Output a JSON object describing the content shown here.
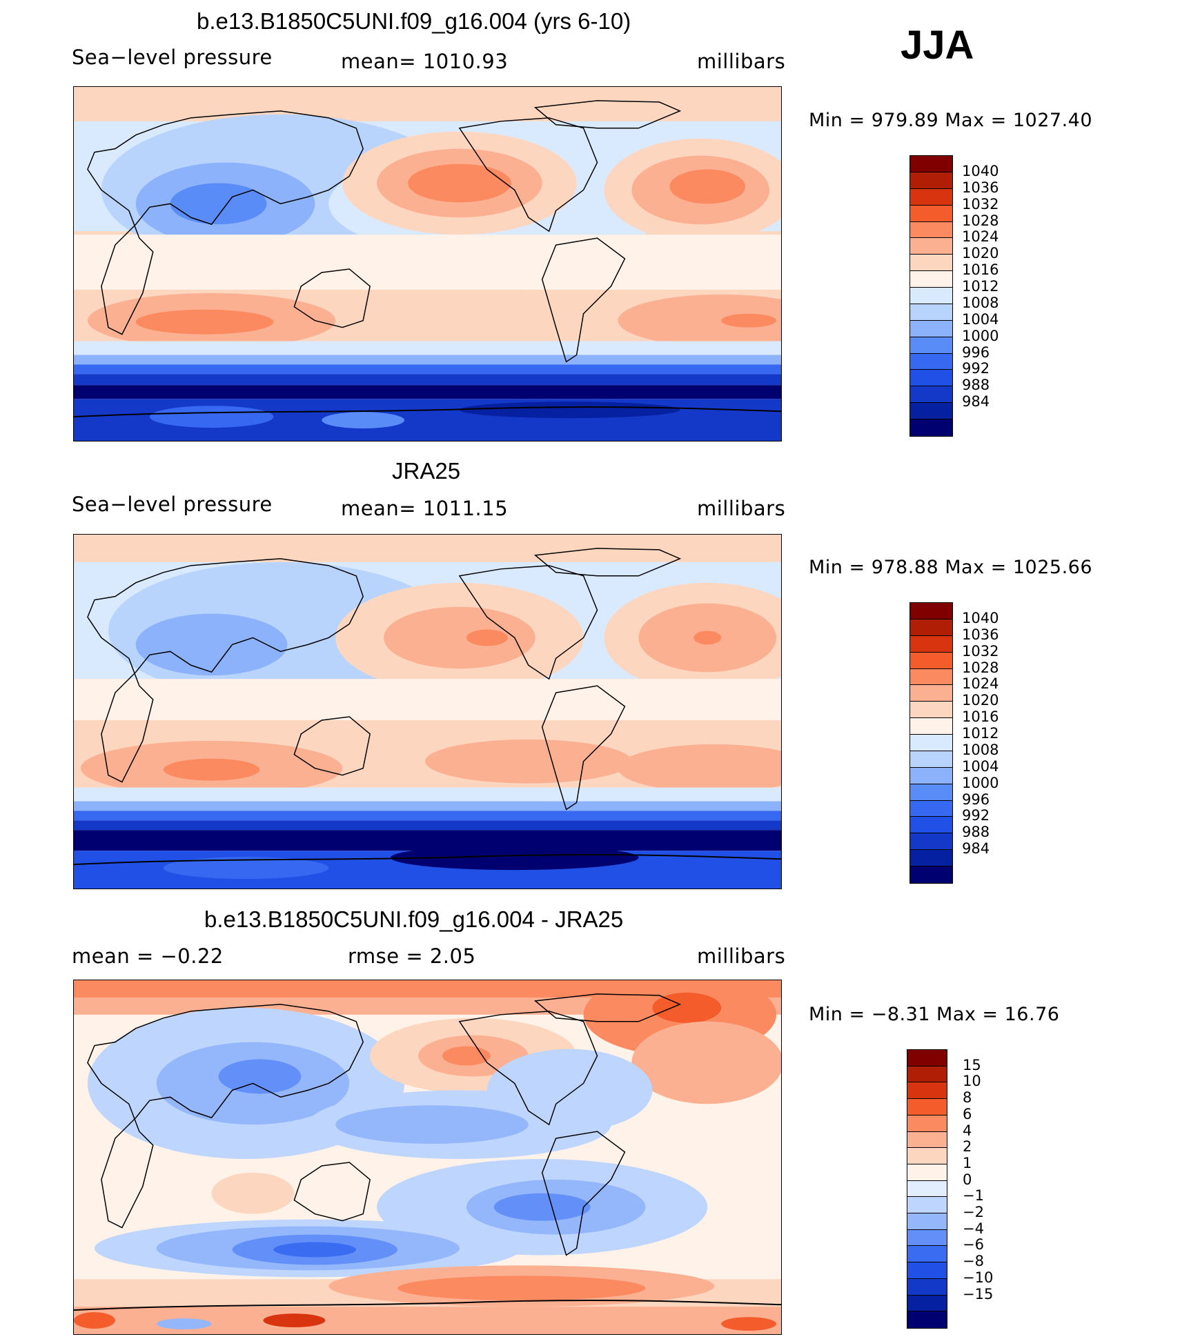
{
  "season": "JJA",
  "palettes": {
    "abs": [
      "#000070",
      "#0520a0",
      "#1438c8",
      "#2050e6",
      "#3668f2",
      "#5a8cf8",
      "#8cb2fb",
      "#b8d4fd",
      "#daeafe",
      "#fff2e8",
      "#fdd6c0",
      "#fcb092",
      "#fb8a60",
      "#f45c2c",
      "#d83410",
      "#b01e06",
      "#800000"
    ],
    "diff": [
      "#000070",
      "#0520a0",
      "#1438c8",
      "#2050e6",
      "#3a6cf2",
      "#6290f8",
      "#94b6fb",
      "#bed6fd",
      "#e2eefe",
      "#fff2e8",
      "#fdd6c0",
      "#fcb092",
      "#fb8a60",
      "#f45c2c",
      "#d83410",
      "#b01e06",
      "#800000"
    ]
  },
  "panels": [
    {
      "title": "b.e13.B1850C5UNI.f09_g16.004 (yrs 6-10)",
      "left": "Sea−level  pressure",
      "center": "mean=  1010.93",
      "right": "millibars",
      "minmax": "Min  =  979.89  Max  =  1027.40",
      "ticks": [
        "1040",
        "1036",
        "1032",
        "1028",
        "1024",
        "1020",
        "1016",
        "1012",
        "1008",
        "1004",
        "1000",
        "996",
        "992",
        "988",
        "984"
      ]
    },
    {
      "title": "JRA25",
      "left": "Sea−level  pressure",
      "center": "mean=  1011.15",
      "right": "millibars",
      "minmax": "Min  =  978.88  Max  =  1025.66",
      "ticks": [
        "1040",
        "1036",
        "1032",
        "1028",
        "1024",
        "1020",
        "1016",
        "1012",
        "1008",
        "1004",
        "1000",
        "996",
        "992",
        "988",
        "984"
      ]
    },
    {
      "title": "b.e13.B1850C5UNI.f09_g16.004 - JRA25",
      "left": "mean  =     −0.22",
      "center": "rmse  =      2.05",
      "right": "millibars",
      "minmax": "Min  =    −8.31  Max  =    16.76",
      "ticks": [
        "15",
        "10",
        "8",
        "6",
        "4",
        "2",
        "1",
        "0",
        "−1",
        "−2",
        "−4",
        "−6",
        "−8",
        "−10",
        "−15"
      ]
    }
  ]
}
